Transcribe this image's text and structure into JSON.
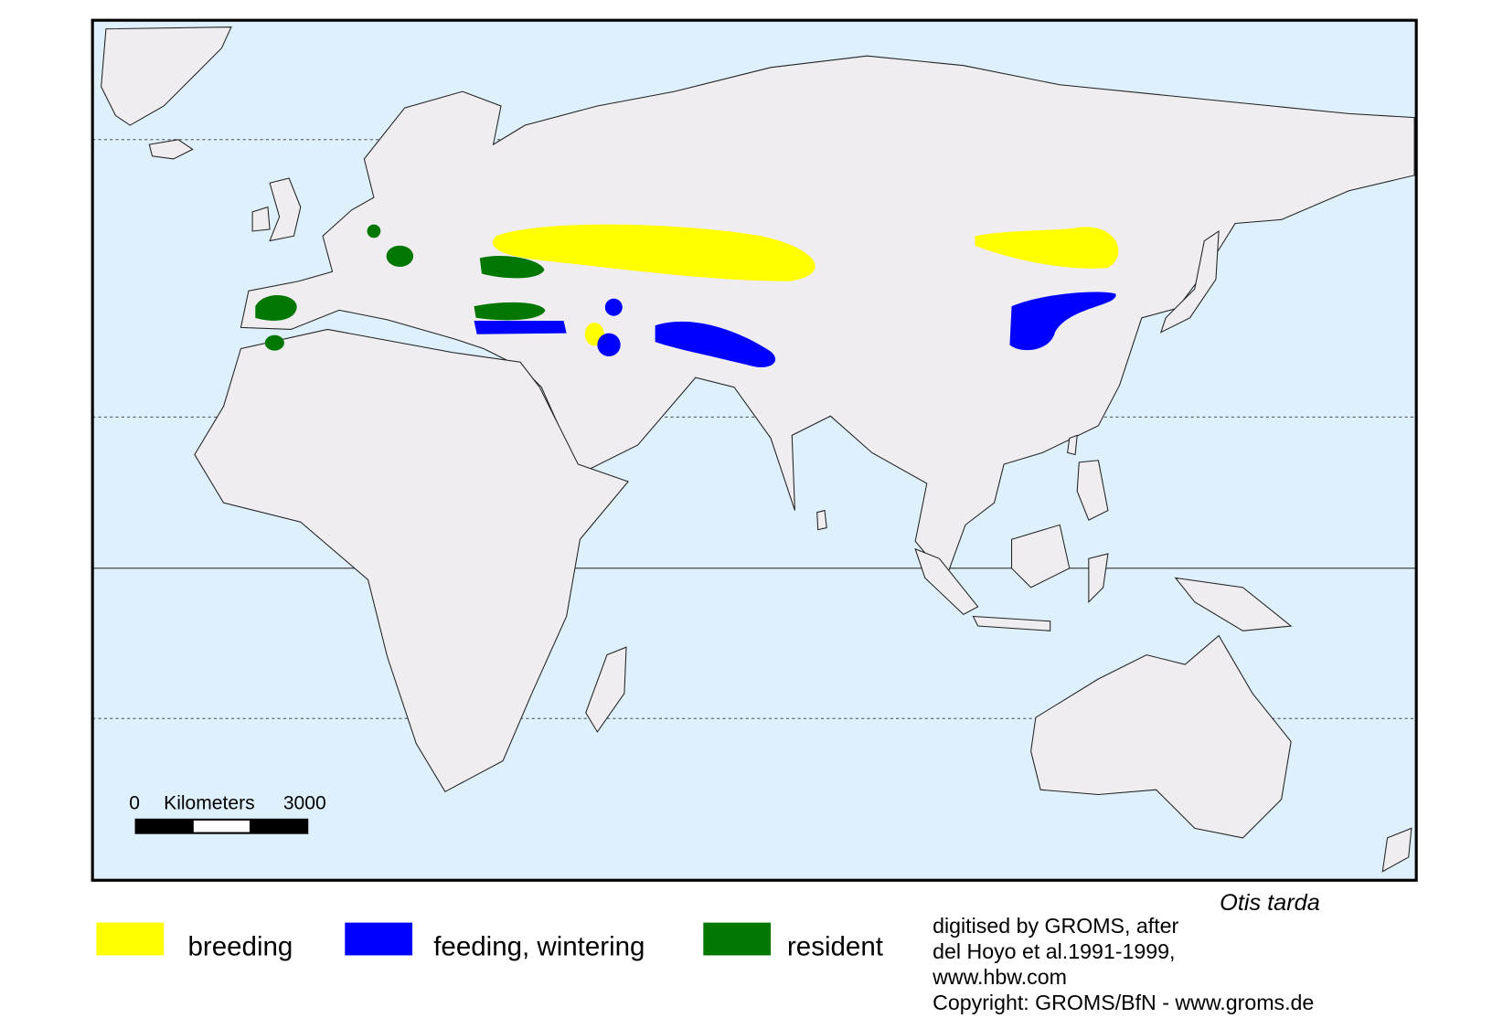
{
  "map": {
    "scale_bar": {
      "start": 0,
      "unit": "Kilometers",
      "end": 3000
    },
    "legend": [
      {
        "label": "breeding",
        "color": "#ffff00"
      },
      {
        "label": "feeding, wintering",
        "color": "#0000ff"
      },
      {
        "label": "resident",
        "color": "#007700"
      }
    ],
    "species": "Otis tarda",
    "credits": [
      "digitised by GROMS, after",
      "del Hoyo et al.1991-1999,",
      "www.hbw.com",
      "Copyright: GROMS/BfN - www.groms.de"
    ]
  }
}
